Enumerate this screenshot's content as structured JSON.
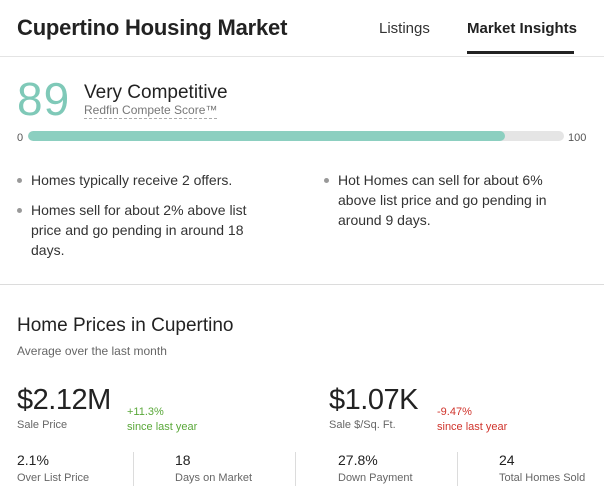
{
  "header": {
    "title": "Cupertino Housing Market",
    "tabs": [
      {
        "label": "Listings",
        "active": false
      },
      {
        "label": "Market Insights",
        "active": true
      }
    ]
  },
  "compete": {
    "score": "89",
    "label": "Very Competitive",
    "sub_label": "Redfin Compete Score™",
    "range_min": "0",
    "range_max": "100",
    "fill_percent": 89,
    "bullets_left": [
      "Homes typically receive 2 offers.",
      "Homes sell for about 2% above list price and go pending in around 18 days."
    ],
    "bullets_right": [
      "Hot Homes can sell for about 6% above list price and go pending in around 9 days."
    ]
  },
  "prices": {
    "title": "Home Prices in Cupertino",
    "subtitle": "Average over the last month",
    "sale_price": {
      "value": "$2.12M",
      "label": "Sale Price",
      "delta": "+11.3%",
      "delta_note": "since last year"
    },
    "sqft_price": {
      "value": "$1.07K",
      "label": "Sale $/Sq. Ft.",
      "delta": "-9.47%",
      "delta_note": "since last year"
    },
    "stats": [
      {
        "value": "2.1%",
        "label": "Over List Price"
      },
      {
        "value": "18",
        "label": "Days on Market"
      },
      {
        "value": "27.8%",
        "label": "Down Payment"
      },
      {
        "value": "24",
        "label": "Total Homes Sold"
      }
    ]
  },
  "colors": {
    "score_accent": "#7fc9b8",
    "positive": "#5aa83a",
    "negative": "#d0342c"
  }
}
